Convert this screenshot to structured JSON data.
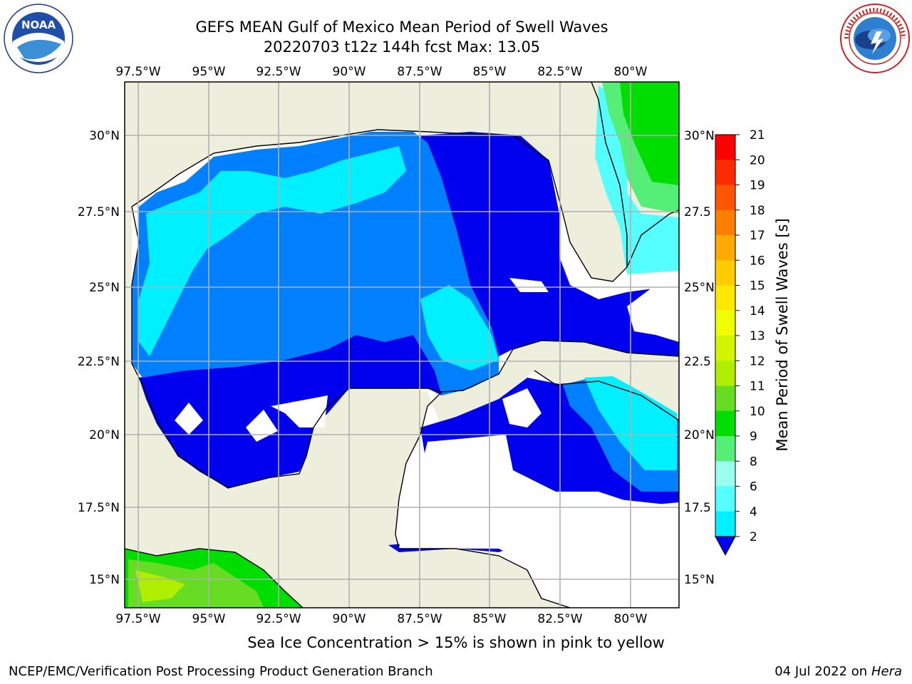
{
  "header": {
    "title_line1": "GEFS MEAN Gulf of Mexico Mean Period of Swell Waves",
    "title_line2": "20220703 t12z 144h fcst   Max: 13.05"
  },
  "logos": {
    "left": "NOAA",
    "left_ring": "NATIONAL OCEANIC AND ATMOSPHERIC ADMINISTRATION · U.S. DEPARTMENT OF COMMERCE",
    "right_ring": "NATIONAL WEATHER SERVICE"
  },
  "map": {
    "lon_labels": [
      "97.5°W",
      "95°W",
      "92.5°W",
      "90°W",
      "87.5°W",
      "85°W",
      "82.5°W",
      "80°W"
    ],
    "lat_labels_left": [
      "30°N",
      "27.5°N",
      "25°N",
      "22.5°N",
      "20°N",
      "17.5°N",
      "15°N"
    ],
    "lat_labels_right": [
      "30°N",
      "27.5",
      "25°N",
      "22.5",
      "20°N",
      "17.5",
      "15°N"
    ],
    "colors": {
      "land": "#eeeedd",
      "ocean_blank": "#ffffff",
      "grid": "#b0b0b0"
    }
  },
  "colorbar": {
    "label": "Mean Period of Swell Waves [s]",
    "ticks": [
      "21",
      "20",
      "19",
      "18",
      "17",
      "16",
      "15",
      "14",
      "13",
      "12",
      "11",
      "10",
      "9",
      "8",
      "6",
      "4",
      "2"
    ],
    "colors": [
      "#ff0000",
      "#ff2a00",
      "#ff5500",
      "#ff7f00",
      "#ffaa00",
      "#ffcc00",
      "#ffe800",
      "#f0ff00",
      "#d4f500",
      "#b0ee00",
      "#66dd22",
      "#00dd00",
      "#55ee77",
      "#99ffee",
      "#55ffff",
      "#00f0ff",
      "#0080ff"
    ],
    "extend_color": "#0000ee"
  },
  "footer": {
    "caption": "Sea Ice Concentration > 15% is shown in pink to yellow",
    "left": "NCEP/EMC/Verification Post Processing Product Generation Branch",
    "right_date": "04 Jul 2022 on",
    "right_machine": "Hera"
  }
}
